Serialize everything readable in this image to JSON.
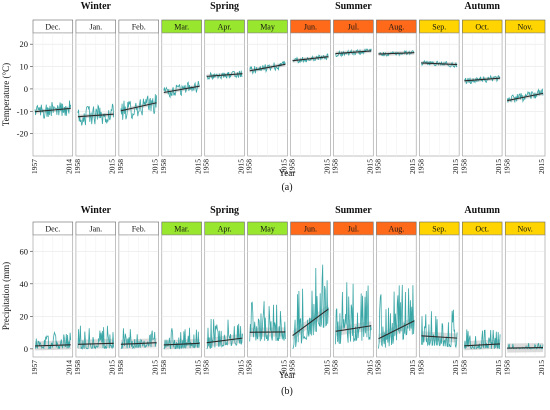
{
  "chart_data": [
    {
      "type": "line",
      "caption": "(a)",
      "xlabel": "Year",
      "ylabel": "Temperature (°C)",
      "ylim": [
        -30,
        25
      ],
      "yticks": [
        -20,
        -10,
        0,
        10,
        20
      ],
      "grid": true,
      "seasons": [
        {
          "label": "Winter",
          "months": [
            0,
            1,
            2
          ]
        },
        {
          "label": "Spring",
          "months": [
            3,
            4,
            5
          ]
        },
        {
          "label": "Summer",
          "months": [
            6,
            7,
            8
          ]
        },
        {
          "label": "Autumn",
          "months": [
            9,
            10,
            11
          ]
        }
      ],
      "panels": [
        {
          "month": "Dec.",
          "header_color": "#ffffff",
          "x_start": "1957",
          "x_end": "2014",
          "mean_start": -10.0,
          "mean_end": -8.6,
          "variability": 3.5,
          "trend_start": -10.2,
          "trend_end": -8.7
        },
        {
          "month": "Jan.",
          "header_color": "#ffffff",
          "x_start": "1958",
          "x_end": "2015",
          "mean_start": -12.0,
          "mean_end": -11.0,
          "variability": 4.5,
          "trend_start": -12.4,
          "trend_end": -11.3
        },
        {
          "month": "Feb.",
          "header_color": "#ffffff",
          "x_start": "1958",
          "x_end": "2015",
          "mean_start": -10.0,
          "mean_end": -6.5,
          "variability": 4.5,
          "trend_start": -9.8,
          "trend_end": -6.2
        },
        {
          "month": "Mar.",
          "header_color": "#99e62e",
          "x_start": "1958",
          "x_end": "2015",
          "mean_start": -1.5,
          "mean_end": 1.0,
          "variability": 2.8,
          "trend_start": -1.6,
          "trend_end": 1.2
        },
        {
          "month": "Apr.",
          "header_color": "#99e62e",
          "x_start": "1958",
          "x_end": "2015",
          "mean_start": 5.5,
          "mean_end": 6.8,
          "variability": 1.6,
          "trend_start": 5.6,
          "trend_end": 6.8
        },
        {
          "month": "May",
          "header_color": "#99e62e",
          "x_start": "1958",
          "x_end": "2015",
          "mean_start": 8.0,
          "mean_end": 11.0,
          "variability": 1.8,
          "trend_start": 8.1,
          "trend_end": 11.0
        },
        {
          "month": "Jun.",
          "header_color": "#ff6a1a",
          "x_start": "1958",
          "x_end": "2015",
          "mean_start": 12.5,
          "mean_end": 14.5,
          "variability": 1.3,
          "trend_start": 12.6,
          "trend_end": 14.4
        },
        {
          "month": "Jul.",
          "header_color": "#ff6a1a",
          "x_start": "1958",
          "x_end": "2015",
          "mean_start": 15.5,
          "mean_end": 17.0,
          "variability": 1.2,
          "trend_start": 15.8,
          "trend_end": 17.0
        },
        {
          "month": "Aug.",
          "header_color": "#ff6a1a",
          "x_start": "1958",
          "x_end": "2015",
          "mean_start": 15.5,
          "mean_end": 16.2,
          "variability": 1.0,
          "trend_start": 15.6,
          "trend_end": 16.2
        },
        {
          "month": "Sep.",
          "header_color": "#ffd400",
          "x_start": "1958",
          "x_end": "2015",
          "mean_start": 11.5,
          "mean_end": 10.8,
          "variability": 1.2,
          "trend_start": 11.6,
          "trend_end": 10.9
        },
        {
          "month": "Oct.",
          "header_color": "#ffd400",
          "x_start": "1958",
          "x_end": "2015",
          "mean_start": 3.5,
          "mean_end": 4.8,
          "variability": 1.4,
          "trend_start": 3.6,
          "trend_end": 4.8
        },
        {
          "month": "Nov.",
          "header_color": "#ffd400",
          "x_start": "1958",
          "x_end": "2015",
          "mean_start": -5.0,
          "mean_end": -2.0,
          "variability": 2.0,
          "trend_start": -5.2,
          "trend_end": -2.0
        }
      ]
    },
    {
      "type": "line",
      "caption": "(b)",
      "xlabel": "Year",
      "ylabel": "Precipitation (mm)",
      "ylim": [
        -5,
        70
      ],
      "yticks": [
        0,
        20,
        40,
        60
      ],
      "grid": true,
      "seasons": [
        {
          "label": "Winter",
          "months": [
            0,
            1,
            2
          ]
        },
        {
          "label": "Spring",
          "months": [
            3,
            4,
            5
          ]
        },
        {
          "label": "Summer",
          "months": [
            6,
            7,
            8
          ]
        },
        {
          "label": "Autumn",
          "months": [
            9,
            10,
            11
          ]
        }
      ],
      "panels": [
        {
          "month": "Dec.",
          "header_color": "#ffffff",
          "x_start": "1957",
          "x_end": "2014",
          "mean_start": 2.0,
          "mean_end": 2.5,
          "variability": 4.0,
          "trend_start": 1.8,
          "trend_end": 2.5
        },
        {
          "month": "Jan.",
          "header_color": "#ffffff",
          "x_start": "1958",
          "x_end": "2015",
          "mean_start": 3.0,
          "mean_end": 3.5,
          "variability": 5.5,
          "trend_start": 2.8,
          "trend_end": 3.4
        },
        {
          "month": "Feb.",
          "header_color": "#ffffff",
          "x_start": "1958",
          "x_end": "2015",
          "mean_start": 3.0,
          "mean_end": 4.0,
          "variability": 5.0,
          "trend_start": 2.8,
          "trend_end": 3.8
        },
        {
          "month": "Mar.",
          "header_color": "#99e62e",
          "x_start": "1958",
          "x_end": "2015",
          "mean_start": 2.5,
          "mean_end": 3.5,
          "variability": 5.0,
          "trend_start": 2.4,
          "trend_end": 3.4
        },
        {
          "month": "Apr.",
          "header_color": "#99e62e",
          "x_start": "1958",
          "x_end": "2015",
          "mean_start": 4.0,
          "mean_end": 6.5,
          "variability": 7.0,
          "trend_start": 3.8,
          "trend_end": 6.6
        },
        {
          "month": "May",
          "header_color": "#99e62e",
          "x_start": "1958",
          "x_end": "2015",
          "mean_start": 10.0,
          "mean_end": 10.5,
          "variability": 10.0,
          "trend_start": 10.2,
          "trend_end": 10.4
        },
        {
          "month": "Jun.",
          "header_color": "#ff6a1a",
          "x_start": "1958",
          "x_end": "2015",
          "mean_start": 8.0,
          "mean_end": 24.0,
          "variability": 16.0,
          "trend_start": 8.2,
          "trend_end": 24.5
        },
        {
          "month": "Jul.",
          "header_color": "#ff6a1a",
          "x_start": "1958",
          "x_end": "2015",
          "mean_start": 11.0,
          "mean_end": 14.0,
          "variability": 15.0,
          "trend_start": 10.8,
          "trend_end": 14.2
        },
        {
          "month": "Aug.",
          "header_color": "#ff6a1a",
          "x_start": "1958",
          "x_end": "2015",
          "mean_start": 6.0,
          "mean_end": 17.0,
          "variability": 14.0,
          "trend_start": 6.2,
          "trend_end": 17.2
        },
        {
          "month": "Sep.",
          "header_color": "#ffd400",
          "x_start": "1958",
          "x_end": "2015",
          "mean_start": 8.0,
          "mean_end": 6.5,
          "variability": 10.0,
          "trend_start": 8.0,
          "trend_end": 6.6
        },
        {
          "month": "Oct.",
          "header_color": "#ffd400",
          "x_start": "1958",
          "x_end": "2015",
          "mean_start": 2.0,
          "mean_end": 3.0,
          "variability": 5.0,
          "trend_start": 1.9,
          "trend_end": 3.0
        },
        {
          "month": "Nov.",
          "header_color": "#ffd400",
          "x_start": "1958",
          "x_end": "2015",
          "mean_start": 0.5,
          "mean_end": 0.8,
          "variability": 1.5,
          "trend_start": 0.5,
          "trend_end": 0.8
        }
      ]
    }
  ]
}
